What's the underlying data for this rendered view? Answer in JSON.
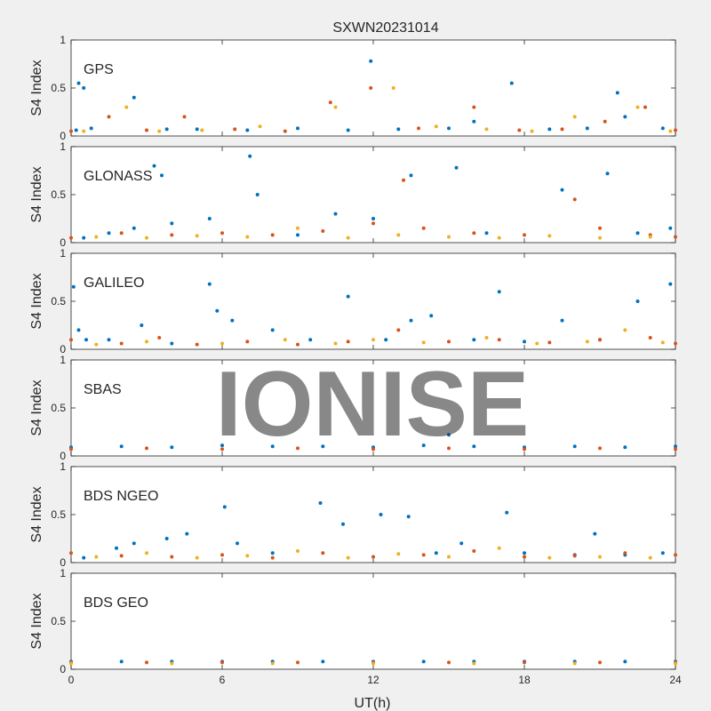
{
  "chart_data": {
    "type": "scatter",
    "title": "SXWN20231014",
    "watermark": "IONISE",
    "xlabel": "UT(h)",
    "ylabel": "S4 Index",
    "xlim": [
      0,
      24
    ],
    "x_ticks": [
      0,
      6,
      12,
      18,
      24
    ],
    "ylim": [
      0,
      1
    ],
    "y_ticks": [
      0,
      0.5,
      1
    ],
    "y_tick_labels": [
      "0",
      "0.5",
      "1"
    ],
    "grid": false,
    "colors": [
      "#0072BD",
      "#D95319",
      "#EDB120",
      "#7E2F8E",
      "#77AC30",
      "#4DBEEE",
      "#A2142F"
    ],
    "panels": [
      {
        "name": "GPS",
        "series": [
          {
            "values": [
              [
                0.2,
                0.06
              ],
              [
                0.3,
                0.55
              ],
              [
                0.5,
                0.5
              ],
              [
                0.8,
                0.08
              ],
              [
                2.5,
                0.4
              ],
              [
                3.8,
                0.07
              ],
              [
                5,
                0.07
              ],
              [
                7,
                0.06
              ],
              [
                9,
                0.08
              ],
              [
                11,
                0.06
              ],
              [
                11.9,
                0.78
              ],
              [
                13,
                0.07
              ],
              [
                15,
                0.08
              ],
              [
                16,
                0.15
              ],
              [
                17.5,
                0.55
              ],
              [
                19,
                0.07
              ],
              [
                20.5,
                0.08
              ],
              [
                21.7,
                0.45
              ],
              [
                22,
                0.2
              ],
              [
                23.5,
                0.08
              ]
            ]
          },
          {
            "values": [
              [
                0,
                0.05
              ],
              [
                1.5,
                0.2
              ],
              [
                3,
                0.06
              ],
              [
                4.5,
                0.2
              ],
              [
                6.5,
                0.07
              ],
              [
                8.5,
                0.05
              ],
              [
                10.3,
                0.35
              ],
              [
                11.9,
                0.5
              ],
              [
                13.8,
                0.08
              ],
              [
                16,
                0.3
              ],
              [
                17.8,
                0.06
              ],
              [
                19.5,
                0.07
              ],
              [
                21.2,
                0.15
              ],
              [
                22.8,
                0.3
              ],
              [
                24,
                0.06
              ]
            ]
          },
          {
            "values": [
              [
                0.5,
                0.05
              ],
              [
                2.2,
                0.3
              ],
              [
                3.5,
                0.05
              ],
              [
                5.2,
                0.06
              ],
              [
                7.5,
                0.1
              ],
              [
                10.5,
                0.3
              ],
              [
                12.8,
                0.5
              ],
              [
                14.5,
                0.1
              ],
              [
                16.5,
                0.07
              ],
              [
                18.3,
                0.05
              ],
              [
                20,
                0.2
              ],
              [
                22.5,
                0.3
              ],
              [
                23.8,
                0.05
              ]
            ]
          }
        ]
      },
      {
        "name": "GLONASS",
        "series": [
          {
            "values": [
              [
                0.5,
                0.05
              ],
              [
                1.5,
                0.1
              ],
              [
                2.5,
                0.15
              ],
              [
                3.3,
                0.8
              ],
              [
                3.6,
                0.7
              ],
              [
                4,
                0.2
              ],
              [
                5.5,
                0.25
              ],
              [
                7.1,
                0.9
              ],
              [
                7.4,
                0.5
              ],
              [
                9,
                0.08
              ],
              [
                10.5,
                0.3
              ],
              [
                12,
                0.25
              ],
              [
                13.5,
                0.7
              ],
              [
                15.3,
                0.78
              ],
              [
                16.5,
                0.1
              ],
              [
                19.5,
                0.55
              ],
              [
                21.3,
                0.72
              ],
              [
                22.5,
                0.1
              ],
              [
                23.8,
                0.15
              ]
            ]
          },
          {
            "values": [
              [
                0,
                0.05
              ],
              [
                2,
                0.1
              ],
              [
                4,
                0.08
              ],
              [
                6,
                0.1
              ],
              [
                8,
                0.08
              ],
              [
                10,
                0.12
              ],
              [
                12,
                0.2
              ],
              [
                13.2,
                0.65
              ],
              [
                14,
                0.15
              ],
              [
                16,
                0.1
              ],
              [
                18,
                0.08
              ],
              [
                20,
                0.45
              ],
              [
                21,
                0.15
              ],
              [
                23,
                0.08
              ],
              [
                24,
                0.06
              ]
            ]
          },
          {
            "values": [
              [
                1,
                0.06
              ],
              [
                3,
                0.05
              ],
              [
                5,
                0.07
              ],
              [
                7,
                0.06
              ],
              [
                9,
                0.15
              ],
              [
                11,
                0.05
              ],
              [
                13,
                0.08
              ],
              [
                15,
                0.06
              ],
              [
                17,
                0.05
              ],
              [
                19,
                0.07
              ],
              [
                21,
                0.05
              ],
              [
                23,
                0.06
              ]
            ]
          }
        ]
      },
      {
        "name": "GALILEO",
        "series": [
          {
            "values": [
              [
                0.1,
                0.65
              ],
              [
                0.3,
                0.2
              ],
              [
                0.6,
                0.1
              ],
              [
                1.5,
                0.1
              ],
              [
                2.8,
                0.25
              ],
              [
                4,
                0.06
              ],
              [
                5.5,
                0.68
              ],
              [
                5.8,
                0.4
              ],
              [
                6.4,
                0.3
              ],
              [
                8,
                0.2
              ],
              [
                9.5,
                0.1
              ],
              [
                11,
                0.55
              ],
              [
                12.5,
                0.1
              ],
              [
                13.5,
                0.3
              ],
              [
                14.3,
                0.35
              ],
              [
                16,
                0.1
              ],
              [
                17,
                0.6
              ],
              [
                18,
                0.08
              ],
              [
                19.5,
                0.3
              ],
              [
                21,
                0.1
              ],
              [
                22.5,
                0.5
              ],
              [
                23.8,
                0.68
              ]
            ]
          },
          {
            "values": [
              [
                0,
                0.1
              ],
              [
                2,
                0.06
              ],
              [
                3.5,
                0.12
              ],
              [
                5,
                0.05
              ],
              [
                7,
                0.08
              ],
              [
                9,
                0.05
              ],
              [
                11,
                0.08
              ],
              [
                13,
                0.2
              ],
              [
                15,
                0.08
              ],
              [
                17,
                0.1
              ],
              [
                19,
                0.07
              ],
              [
                21,
                0.1
              ],
              [
                23,
                0.12
              ],
              [
                24,
                0.06
              ]
            ]
          },
          {
            "values": [
              [
                1,
                0.05
              ],
              [
                3,
                0.08
              ],
              [
                6,
                0.06
              ],
              [
                8.5,
                0.1
              ],
              [
                10.5,
                0.06
              ],
              [
                12,
                0.1
              ],
              [
                14,
                0.07
              ],
              [
                16.5,
                0.12
              ],
              [
                18.5,
                0.06
              ],
              [
                20.5,
                0.08
              ],
              [
                22,
                0.2
              ],
              [
                23.5,
                0.07
              ]
            ]
          }
        ]
      },
      {
        "name": "SBAS",
        "series": [
          {
            "values": [
              [
                0,
                0.09
              ],
              [
                2,
                0.1
              ],
              [
                4,
                0.09
              ],
              [
                6,
                0.11
              ],
              [
                8,
                0.1
              ],
              [
                10,
                0.1
              ],
              [
                12,
                0.09
              ],
              [
                14,
                0.11
              ],
              [
                15,
                0.22
              ],
              [
                16,
                0.1
              ],
              [
                18,
                0.09
              ],
              [
                20,
                0.1
              ],
              [
                22,
                0.09
              ],
              [
                24,
                0.1
              ]
            ]
          },
          {
            "values": [
              [
                0,
                0.07
              ],
              [
                3,
                0.08
              ],
              [
                6,
                0.07
              ],
              [
                9,
                0.08
              ],
              [
                12,
                0.07
              ],
              [
                15,
                0.08
              ],
              [
                18,
                0.07
              ],
              [
                21,
                0.08
              ],
              [
                24,
                0.07
              ]
            ]
          }
        ]
      },
      {
        "name": "BDS NGEO",
        "series": [
          {
            "values": [
              [
                0.5,
                0.05
              ],
              [
                1.8,
                0.15
              ],
              [
                2.5,
                0.2
              ],
              [
                3.8,
                0.25
              ],
              [
                4.6,
                0.3
              ],
              [
                6.1,
                0.58
              ],
              [
                6.6,
                0.2
              ],
              [
                8,
                0.1
              ],
              [
                9.9,
                0.62
              ],
              [
                10.8,
                0.4
              ],
              [
                12.3,
                0.5
              ],
              [
                13.4,
                0.48
              ],
              [
                14.5,
                0.1
              ],
              [
                15.5,
                0.2
              ],
              [
                17.3,
                0.52
              ],
              [
                18,
                0.1
              ],
              [
                20,
                0.08
              ],
              [
                20.8,
                0.3
              ],
              [
                22,
                0.08
              ],
              [
                23.5,
                0.1
              ]
            ]
          },
          {
            "values": [
              [
                0,
                0.1
              ],
              [
                2,
                0.07
              ],
              [
                4,
                0.06
              ],
              [
                6,
                0.08
              ],
              [
                8,
                0.05
              ],
              [
                10,
                0.1
              ],
              [
                12,
                0.06
              ],
              [
                14,
                0.08
              ],
              [
                16,
                0.12
              ],
              [
                18,
                0.06
              ],
              [
                20,
                0.07
              ],
              [
                22,
                0.1
              ],
              [
                24,
                0.08
              ]
            ]
          },
          {
            "values": [
              [
                1,
                0.06
              ],
              [
                3,
                0.1
              ],
              [
                5,
                0.05
              ],
              [
                7,
                0.07
              ],
              [
                9,
                0.12
              ],
              [
                11,
                0.05
              ],
              [
                13,
                0.09
              ],
              [
                15,
                0.06
              ],
              [
                17,
                0.15
              ],
              [
                19,
                0.05
              ],
              [
                21,
                0.06
              ],
              [
                23,
                0.05
              ]
            ]
          }
        ]
      },
      {
        "name": "BDS GEO",
        "series": [
          {
            "values": [
              [
                0,
                0.08
              ],
              [
                2,
                0.08
              ],
              [
                4,
                0.08
              ],
              [
                6,
                0.08
              ],
              [
                8,
                0.08
              ],
              [
                10,
                0.08
              ],
              [
                12,
                0.08
              ],
              [
                14,
                0.08
              ],
              [
                16,
                0.08
              ],
              [
                18,
                0.08
              ],
              [
                20,
                0.08
              ],
              [
                22,
                0.08
              ],
              [
                24,
                0.08
              ]
            ]
          },
          {
            "values": [
              [
                0,
                0.07
              ],
              [
                3,
                0.07
              ],
              [
                6,
                0.07
              ],
              [
                9,
                0.07
              ],
              [
                12,
                0.07
              ],
              [
                15,
                0.07
              ],
              [
                18,
                0.07
              ],
              [
                21,
                0.07
              ],
              [
                24,
                0.07
              ]
            ]
          },
          {
            "values": [
              [
                0,
                0.06
              ],
              [
                4,
                0.06
              ],
              [
                8,
                0.06
              ],
              [
                12,
                0.06
              ],
              [
                16,
                0.06
              ],
              [
                20,
                0.06
              ],
              [
                24,
                0.06
              ]
            ]
          }
        ]
      }
    ]
  }
}
